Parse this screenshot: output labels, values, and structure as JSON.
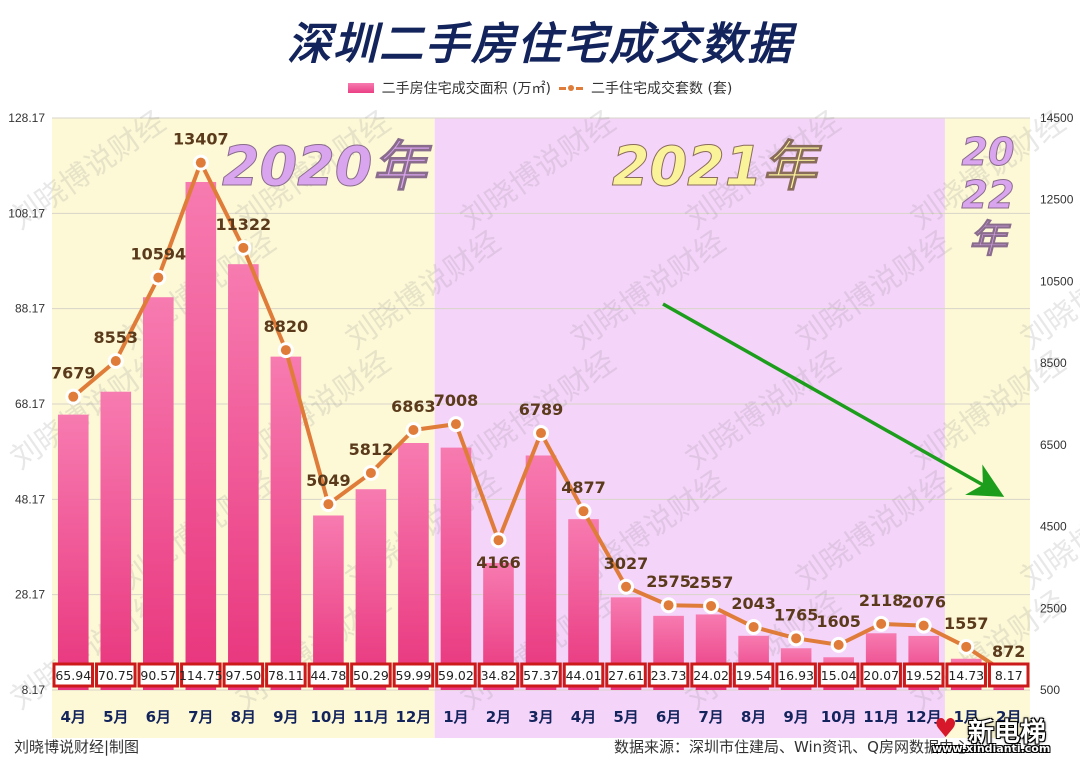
{
  "header": {
    "title": "深圳二手房住宅成交数据",
    "legend_bar": "二手房住宅成交面积 (万㎡)",
    "legend_line": "二手住宅成交套数 (套)"
  },
  "footer": {
    "credit": "刘晓博说财经|制图",
    "source": "数据来源：深圳市住建局、Win资讯、Q房网数据中心",
    "logo_brand": "新电梯",
    "logo_url": "www.xindianti.com"
  },
  "watermark": "刘晓博说财经",
  "colors": {
    "title": "#13235b",
    "bar_top": "#f77bb0",
    "bar_bottom": "#e8347c",
    "line": "#e07c3a",
    "bg_2020": "#fdf9d6",
    "bg_2021": "#f5d4fa",
    "bg_2022": "#fdf9d6",
    "label_box_border": "#cc1a1a",
    "arrow": "#1c9e1c"
  },
  "chart_data": {
    "type": "bar+line",
    "title": "深圳二手房住宅成交数据",
    "categories": [
      "4月",
      "5月",
      "6月",
      "7月",
      "8月",
      "9月",
      "10月",
      "11月",
      "12月",
      "1月",
      "2月",
      "3月",
      "4月",
      "5月",
      "6月",
      "7月",
      "8月",
      "9月",
      "10月",
      "11月",
      "12月",
      "1月",
      "2月"
    ],
    "year_groups": [
      {
        "label": "2020年",
        "start": 0,
        "end": 8
      },
      {
        "label": "2021年",
        "start": 9,
        "end": 20
      },
      {
        "label": "2022年",
        "start": 21,
        "end": 22
      }
    ],
    "series": [
      {
        "name": "二手房住宅成交面积 (万㎡)",
        "type": "bar",
        "axis": "left",
        "values": [
          65.94,
          70.75,
          90.57,
          114.75,
          97.5,
          78.11,
          44.78,
          50.29,
          59.99,
          59.02,
          34.82,
          57.37,
          44.01,
          27.61,
          23.73,
          24.02,
          19.54,
          16.93,
          15.04,
          20.07,
          19.52,
          14.73,
          8.17
        ],
        "labels": [
          "65.94",
          "70.75",
          "90.57",
          "114.75",
          "97.50",
          "78.11",
          "44.78",
          "50.29",
          "59.99",
          "59.02",
          "34.82",
          "57.37",
          "44.01",
          "27.61",
          "23.73",
          "24.02",
          "19.54",
          "16.93",
          "15.04",
          "20.07",
          "19.52",
          "14.73",
          "8.17"
        ]
      },
      {
        "name": "二手住宅成交套数 (套)",
        "type": "line",
        "axis": "right",
        "values": [
          7679,
          8553,
          10594,
          13407,
          11322,
          8820,
          5049,
          5812,
          6863,
          7008,
          4166,
          6789,
          4877,
          3027,
          2575,
          2557,
          2043,
          1765,
          1605,
          2118,
          2076,
          1557,
          872
        ]
      }
    ],
    "left_axis": {
      "ticks": [
        "8.17",
        "28.17",
        "48.17",
        "68.17",
        "88.17",
        "108.17",
        "128.17"
      ],
      "range": [
        8.17,
        128.17
      ]
    },
    "right_axis": {
      "ticks": [
        "500",
        "2500",
        "4500",
        "6500",
        "8500",
        "10500",
        "12500",
        "14500"
      ],
      "range": [
        500,
        14500
      ]
    },
    "annotations": [
      "green downward trend arrow across 2021-2022"
    ],
    "grid": true,
    "legend_position": "top"
  }
}
